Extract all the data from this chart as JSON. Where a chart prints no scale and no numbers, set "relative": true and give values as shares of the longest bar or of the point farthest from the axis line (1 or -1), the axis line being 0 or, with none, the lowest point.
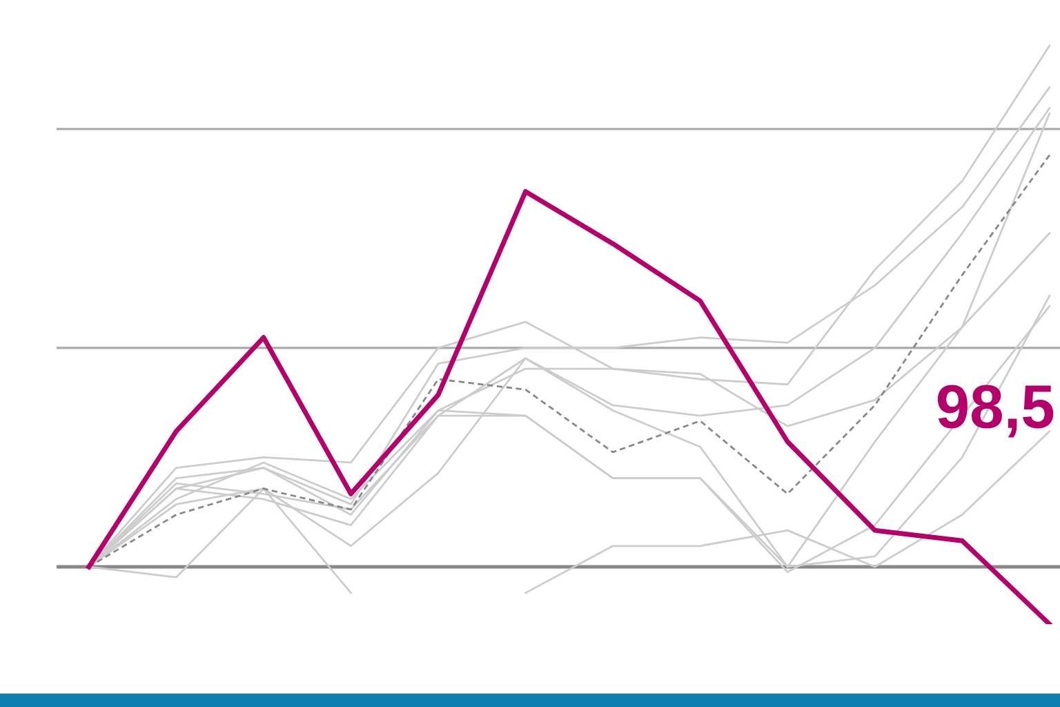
{
  "chart_data": {
    "type": "line",
    "relative": true,
    "categories": [
      null,
      null,
      null,
      null,
      null,
      null,
      null,
      null,
      null,
      null,
      null,
      null
    ],
    "series": [
      {
        "color": "#cccccc",
        "values": [
          0,
          0.19,
          0.21,
          0.2,
          0.42,
          0.47,
          0.38,
          0.36,
          0.35,
          0.57,
          0.74,
          1.0
        ]
      },
      {
        "color": "#cccccc",
        "values": [
          0,
          0.17,
          0.19,
          0.12,
          0.39,
          0.42,
          0.42,
          0.44,
          0.43,
          0.54,
          0.69,
          0.92
        ]
      },
      {
        "color": "#cccccc",
        "values": [
          0,
          0.16,
          0.14,
          0.11,
          0.29,
          0.4,
          0.31,
          0.29,
          0.31,
          0.42,
          0.64,
          0.88
        ]
      },
      {
        "color": "#cccccc",
        "values": [
          0,
          0.13,
          0.2,
          0.13,
          0.3,
          0.38,
          0.38,
          0.37,
          0.27,
          0.32,
          0.46,
          0.64
        ]
      },
      {
        "color": "#cccccc",
        "values": [
          0,
          0.15,
          0.13,
          0.08,
          0.29,
          0.29,
          0.17,
          0.17,
          0,
          0.02,
          0.21,
          0.52
        ]
      },
      {
        "color": "#cccccc",
        "values": [
          0,
          0.12,
          0.15,
          0.04,
          0.18,
          0.4,
          0.3,
          0.23,
          0,
          0.24,
          0.46,
          0.87
        ]
      },
      {
        "color": "#cccccc",
        "values": [
          0,
          -0.02,
          0.15,
          -0.05,
          null,
          -0.05,
          0.04,
          0.04,
          0.07,
          0,
          0.1,
          0.26
        ]
      },
      {
        "color": "#cccccc",
        "values": [
          0,
          0.15,
          0.19,
          0.1,
          0.3,
          0.29,
          0.17,
          0.17,
          -0.01,
          0.08,
          0.29,
          0.5
        ]
      },
      {
        "color": "#888888",
        "line_style": "dashed",
        "values": [
          0,
          0.1,
          0.15,
          0.11,
          0.36,
          0.34,
          0.22,
          0.28,
          0.14,
          0.31,
          0.56,
          0.79
        ]
      },
      {
        "color": "#b5006a",
        "values": [
          0,
          0.26,
          0.44,
          0.14,
          0.33,
          0.72,
          0.62,
          0.51,
          0.24,
          0.07,
          0.05,
          -0.11
        ]
      }
    ],
    "ref_lines": [
      {
        "axis": "y",
        "value": 0.42,
        "color": "#aaaaaa"
      },
      {
        "axis": "y",
        "value": 0.84,
        "color": "#aaaaaa"
      }
    ],
    "annotations": [
      "98,5"
    ],
    "legend": false
  }
}
